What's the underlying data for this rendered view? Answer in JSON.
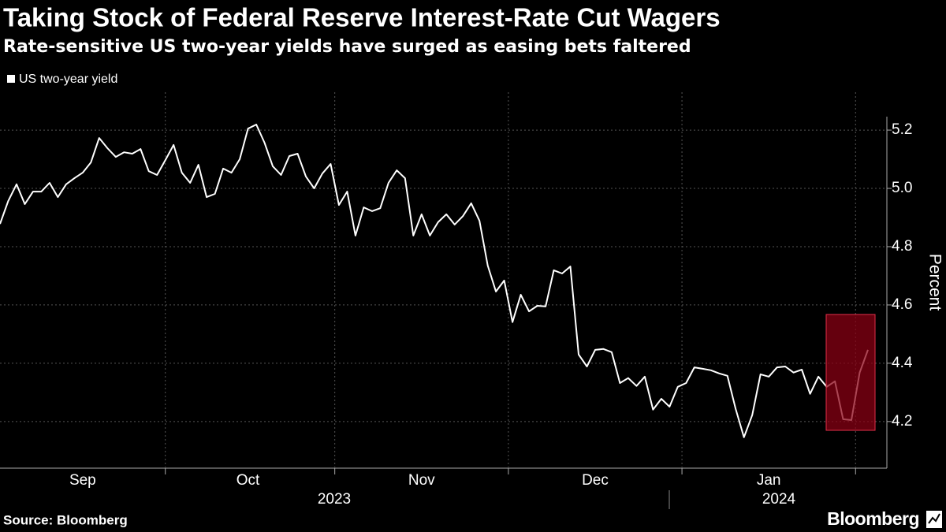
{
  "chart_data": {
    "type": "line",
    "title": "Taking Stock of Federal Reserve Interest-Rate Cut Wagers",
    "subtitle": "Rate-sensitive US two-year yields have surged as easing bets faltered",
    "y_axis_label": "Percent",
    "source": "Source: Bloomberg",
    "brand": "Bloomberg",
    "years": [
      "2023",
      "2024"
    ],
    "categories": [
      null,
      null,
      null,
      null,
      null,
      null,
      null,
      null,
      null,
      null,
      "Sep",
      null,
      null,
      null,
      null,
      null,
      null,
      null,
      null,
      null,
      null,
      null,
      null,
      null,
      null,
      null,
      null,
      null,
      null,
      null,
      "Oct",
      null,
      null,
      null,
      null,
      null,
      null,
      null,
      null,
      null,
      null,
      null,
      null,
      null,
      null,
      null,
      null,
      null,
      null,
      null,
      null,
      "Nov",
      null,
      null,
      null,
      null,
      null,
      null,
      null,
      null,
      null,
      null,
      null,
      null,
      null,
      null,
      null,
      null,
      null,
      null,
      null,
      null,
      "Dec",
      null,
      null,
      null,
      null,
      null,
      null,
      null,
      null,
      null,
      null,
      null,
      null,
      null,
      null,
      null,
      null,
      null,
      null,
      null,
      null,
      "Jan",
      null,
      null,
      null,
      null,
      null,
      null,
      null,
      null,
      null,
      null,
      null,
      null
    ],
    "series": [
      {
        "name": "US two-year yield",
        "color": "#ffffff",
        "values": [
          4.878,
          4.957,
          5.014,
          4.946,
          4.989,
          4.989,
          5.019,
          4.97,
          5.014,
          5.035,
          5.054,
          5.089,
          5.173,
          5.138,
          5.108,
          5.124,
          5.119,
          5.135,
          5.059,
          5.046,
          5.097,
          5.149,
          5.054,
          5.019,
          5.081,
          4.97,
          4.981,
          5.068,
          5.054,
          5.1,
          5.205,
          5.219,
          5.157,
          5.076,
          5.046,
          5.111,
          5.119,
          5.041,
          5.0,
          5.051,
          5.084,
          4.943,
          4.989,
          4.838,
          4.935,
          4.922,
          4.932,
          5.019,
          5.062,
          5.035,
          4.838,
          4.911,
          4.838,
          4.884,
          4.911,
          4.876,
          4.905,
          4.949,
          4.889,
          4.735,
          4.646,
          4.684,
          4.541,
          4.635,
          4.578,
          4.597,
          4.595,
          4.719,
          4.708,
          4.732,
          4.43,
          4.389,
          4.446,
          4.449,
          4.438,
          4.332,
          4.349,
          4.322,
          4.354,
          4.241,
          4.278,
          4.251,
          4.319,
          4.332,
          4.386,
          4.381,
          4.376,
          4.365,
          4.357,
          4.243,
          4.146,
          4.222,
          4.362,
          4.354,
          4.386,
          4.389,
          4.368,
          4.378,
          4.295,
          4.354,
          4.319,
          4.338,
          4.208,
          4.205,
          4.368,
          4.446
        ]
      }
    ],
    "ylim": [
      4.04,
      5.33
    ],
    "yticks": [
      4.2,
      4.4,
      4.6,
      4.8,
      {
        "value": 5,
        "label": "5.0"
      },
      5.2
    ],
    "grid": true
  }
}
